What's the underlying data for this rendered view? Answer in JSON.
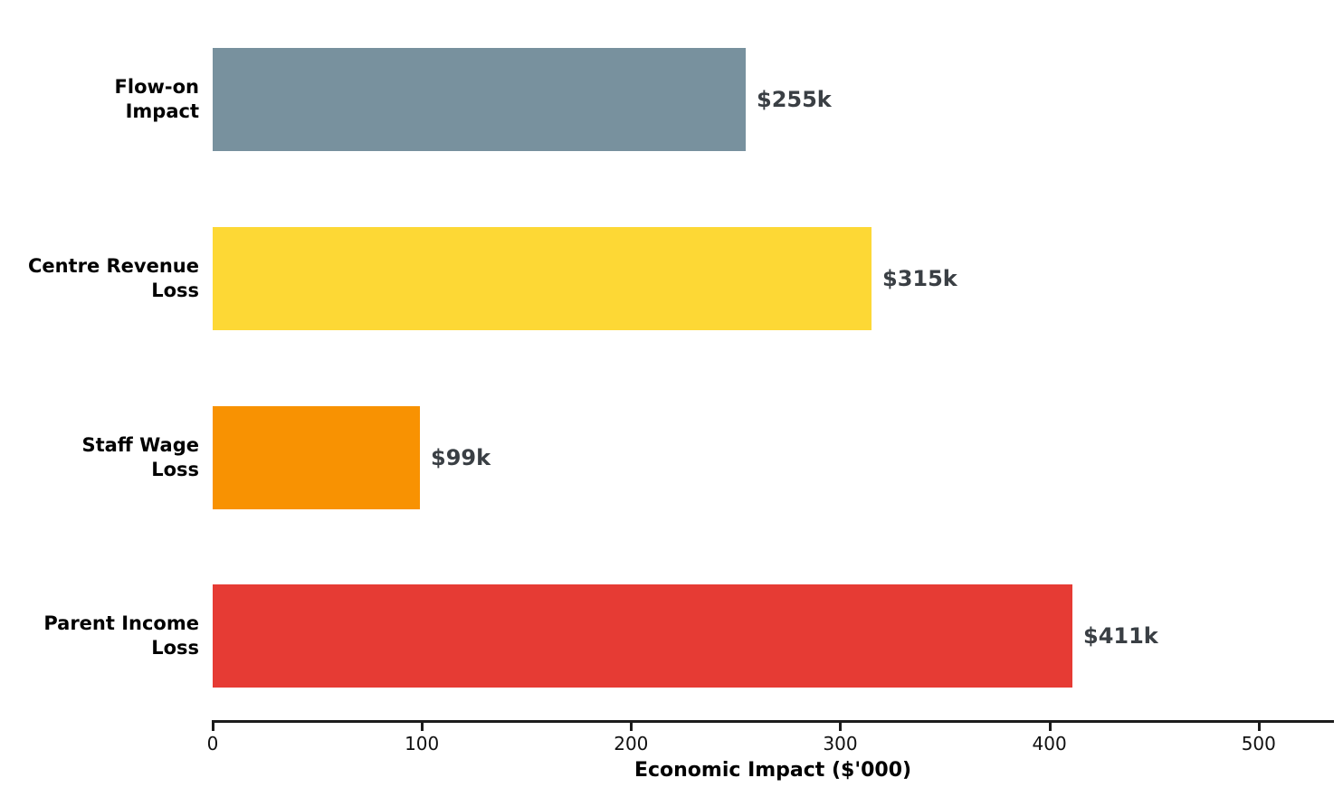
{
  "chart_data": {
    "type": "bar",
    "orientation": "horizontal",
    "title": "",
    "xlabel": "Economic Impact ($'000)",
    "ylabel": "",
    "categories": [
      "Flow-on\nImpact",
      "Centre Revenue\nLoss",
      "Staff Wage\nLoss",
      "Parent Income\nLoss"
    ],
    "values": [
      255,
      315,
      99,
      411
    ],
    "value_labels": [
      "$255k",
      "$315k",
      "$99k",
      "$411k"
    ],
    "bar_colors": [
      "#78919E",
      "#FDD835",
      "#F89202",
      "#E63B34"
    ],
    "xticks": [
      0,
      100,
      200,
      300,
      400,
      500
    ],
    "xlim": [
      0,
      536
    ],
    "grid": false,
    "legend": null
  },
  "colors": {
    "value_label": "#3A3F44",
    "axis": "#1c1c1c",
    "category_label": "#000000",
    "background": "#ffffff"
  }
}
